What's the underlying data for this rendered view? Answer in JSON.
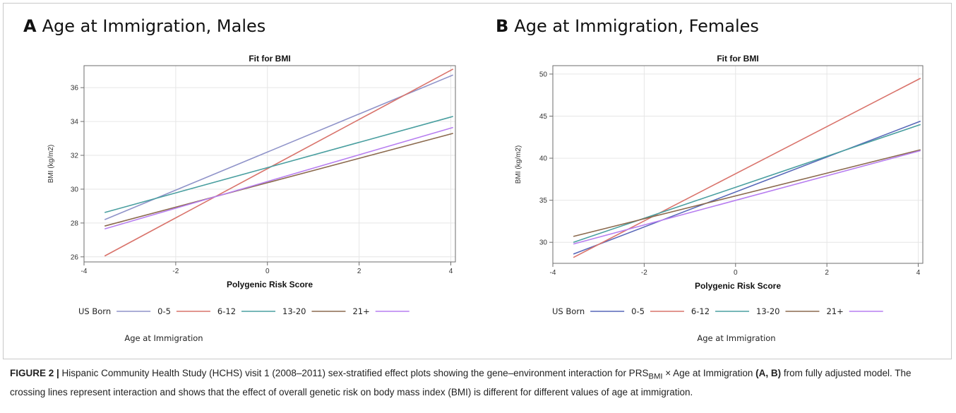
{
  "panels": [
    {
      "letter": "A",
      "title": "Age at Immigration, Males",
      "chart_data": {
        "type": "line",
        "title": "Fit for BMI",
        "xlabel": "Polygenic Risk Score",
        "ylabel": "BMI (kg/m2)",
        "xlim": [
          -4,
          4.1
        ],
        "ylim": [
          25.7,
          37.3
        ],
        "xticks": [
          -4,
          -2,
          0,
          2,
          4
        ],
        "yticks": [
          26,
          28,
          30,
          32,
          34,
          36
        ],
        "grid": true,
        "legend": {
          "title": "Age at Immigration",
          "placement": "bottom"
        },
        "series": [
          {
            "name": "US Born",
            "color": "#8f93c9",
            "x": [
              -3.55,
              4.05
            ],
            "y": [
              28.2,
              36.75
            ]
          },
          {
            "name": "0-5",
            "color": "#d9736b",
            "x": [
              -3.55,
              4.05
            ],
            "y": [
              26.05,
              37.1
            ]
          },
          {
            "name": "6-12",
            "color": "#4a9fa0",
            "x": [
              -3.55,
              4.05
            ],
            "y": [
              28.62,
              34.3
            ]
          },
          {
            "name": "13-20",
            "color": "#8b6a4e",
            "x": [
              -3.55,
              4.05
            ],
            "y": [
              27.82,
              33.3
            ]
          },
          {
            "name": "21+",
            "color": "#b77ef0",
            "x": [
              -3.55,
              4.05
            ],
            "y": [
              27.65,
              33.65
            ]
          }
        ]
      }
    },
    {
      "letter": "B",
      "title": "Age at Immigration, Females",
      "chart_data": {
        "type": "line",
        "title": "Fit for BMI",
        "xlabel": "Polygenic Risk Score",
        "ylabel": "BMI (kg/m2)",
        "xlim": [
          -4,
          4.1
        ],
        "ylim": [
          27.5,
          51
        ],
        "xticks": [
          -4,
          -2,
          0,
          2,
          4
        ],
        "yticks": [
          30,
          35,
          40,
          45,
          50
        ],
        "grid": true,
        "legend": {
          "title": "Age at Immigration",
          "placement": "bottom"
        },
        "series": [
          {
            "name": "US Born",
            "color": "#5767b8",
            "x": [
              -3.55,
              4.05
            ],
            "y": [
              28.6,
              44.4
            ]
          },
          {
            "name": "0-5",
            "color": "#d9736b",
            "x": [
              -3.55,
              4.05
            ],
            "y": [
              28.2,
              49.5
            ]
          },
          {
            "name": "6-12",
            "color": "#4a9fa0",
            "x": [
              -3.55,
              4.05
            ],
            "y": [
              30.0,
              44.0
            ]
          },
          {
            "name": "13-20",
            "color": "#8b6a4e",
            "x": [
              -3.55,
              4.05
            ],
            "y": [
              30.7,
              41.0
            ]
          },
          {
            "name": "21+",
            "color": "#b77ef0",
            "x": [
              -3.55,
              4.05
            ],
            "y": [
              29.8,
              40.9
            ]
          }
        ]
      }
    }
  ],
  "caption": {
    "label": "FIGURE 2 |",
    "part1": " Hispanic Community Health Study (HCHS) visit 1 (2008–2011) sex-stratified effect plots showing the gene–environment interaction for PRS",
    "subscript": "BMI",
    "part2": " × Age at Immigration ",
    "bold_ref": "(A, B)",
    "part3": " from fully adjusted model. The crossing lines represent interaction and shows that the effect of overall genetic risk on body mass index (BMI) is different for different values of age at immigration."
  }
}
